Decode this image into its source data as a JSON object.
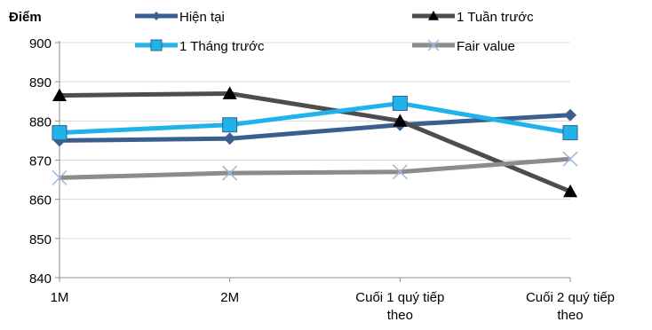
{
  "chart_data": {
    "type": "line",
    "ylabel": "Điểm",
    "ylim": [
      840,
      900
    ],
    "yticks": [
      840,
      850,
      860,
      870,
      880,
      890,
      900
    ],
    "grid": true,
    "legend_position": "top",
    "categories": [
      [
        "1M"
      ],
      [
        "2M"
      ],
      [
        "Cuối 1 quý tiếp",
        "theo"
      ],
      [
        "Cuối 2 quý tiếp",
        "theo"
      ]
    ],
    "series": [
      {
        "name": "Hiện tại",
        "values": [
          875,
          875.5,
          879,
          881.5
        ],
        "color": "#3A5F8F",
        "marker": "diamond"
      },
      {
        "name": "1 Tuần trước",
        "values": [
          886.5,
          887,
          880,
          862
        ],
        "color": "#4D4D4D",
        "marker": "triangle"
      },
      {
        "name": "1 Tháng trước",
        "values": [
          877,
          879,
          884.5,
          877
        ],
        "color": "#1FB3EA",
        "marker": "square"
      },
      {
        "name": "Fair value",
        "values": [
          865.5,
          866.7,
          867,
          870.3
        ],
        "color": "#8C8C8C",
        "marker": "x"
      }
    ]
  }
}
